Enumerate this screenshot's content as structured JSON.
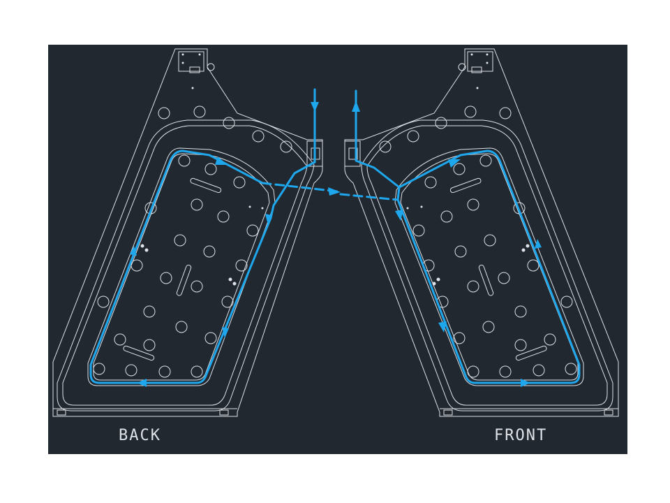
{
  "panels": [
    {
      "label": "BACK"
    },
    {
      "label": "FRONT"
    }
  ],
  "colors": {
    "background": "#ffffff",
    "canvas": "#212830",
    "linework": "#dfe3e8",
    "flow": "#1ea7ec"
  }
}
